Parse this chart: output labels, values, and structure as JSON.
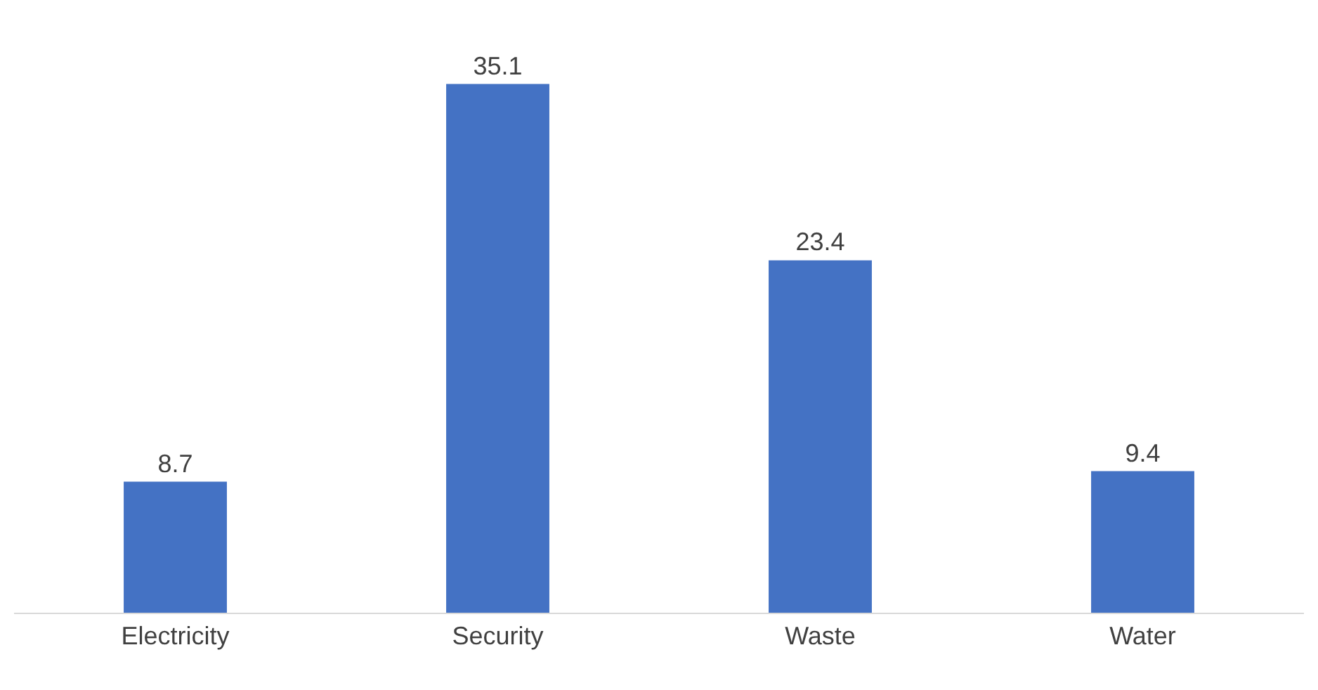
{
  "chart_data": {
    "type": "bar",
    "categories": [
      "Electricity",
      "Security",
      "Waste",
      "Water"
    ],
    "values": [
      8.7,
      35.1,
      23.4,
      9.4
    ],
    "color": "#4472c4",
    "data_labels": true,
    "grid": false,
    "legend": false,
    "tick_labels": "x"
  }
}
